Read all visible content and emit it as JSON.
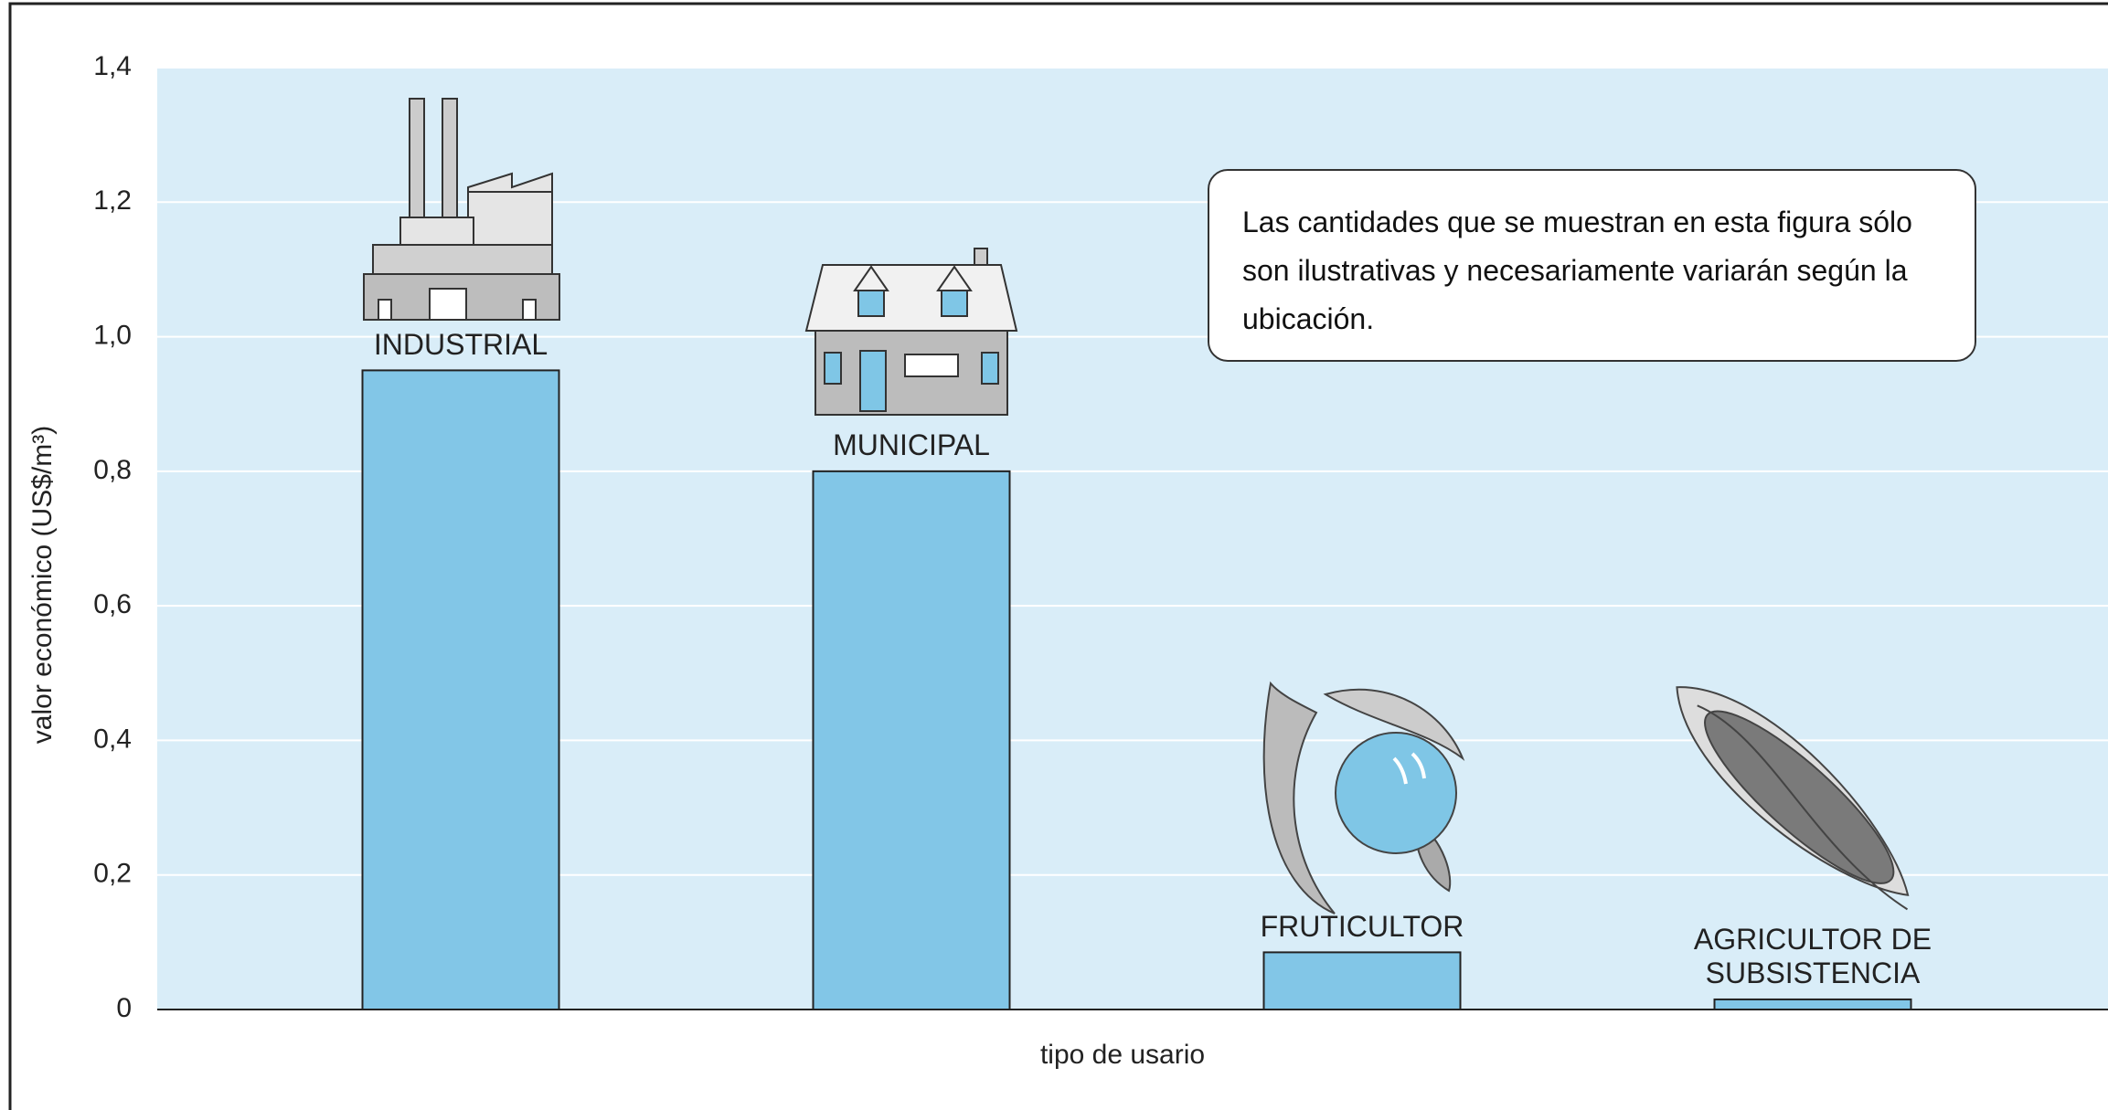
{
  "chart_data": {
    "type": "bar",
    "ylabel": "valor económico  (US$/m³)",
    "xlabel": "tipo de usario",
    "annotation": "Las cantidades que se muestran en esta figura sólo son ilustrativas y necesariamente variarán según la ubicación.",
    "categories": [
      "INDUSTRIAL",
      "MUNICIPAL",
      "FRUTICULTOR",
      "AGRICULTOR DE SUBSISTENCIA"
    ],
    "values": [
      0.95,
      0.8,
      0.085,
      0.015
    ],
    "color": "#82c6e7",
    "ylim": [
      0,
      1.4
    ],
    "yticks": [
      0,
      {
        "value": 0.2,
        "label": "0,2"
      },
      {
        "value": 0.4,
        "label": "0,4"
      },
      {
        "value": 0.6,
        "label": "0,6"
      },
      {
        "value": 0.8,
        "label": "0,8"
      },
      {
        "value": 1.0,
        "label": "1,0"
      },
      {
        "value": 1.2,
        "label": "1,2"
      },
      {
        "value": 1.4,
        "label": "1,4"
      }
    ],
    "grid": true
  }
}
